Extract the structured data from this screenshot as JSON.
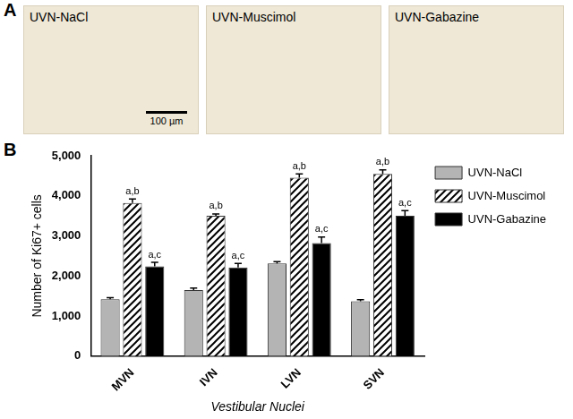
{
  "figure": {
    "panel_labels": [
      "A",
      "B"
    ],
    "micrographs": [
      "UVN-NaCl",
      "UVN-Muscimol",
      "UVN-Gabazine"
    ],
    "scale_bar": "100 µm"
  },
  "chart_data": {
    "type": "bar",
    "x_label": "Vestibular Nuclei",
    "y_label": "Number of Ki67+ cells",
    "categories": [
      "MVN",
      "IVN",
      "LVN",
      "SVN"
    ],
    "series": [
      {
        "name": "UVN-NaCl",
        "color": "#b4b4b4",
        "values": [
          1420,
          1650,
          2310,
          1370
        ],
        "errors": [
          40,
          50,
          50,
          40
        ]
      },
      {
        "name": "UVN-Muscimol",
        "color": "#ffffff",
        "values": [
          3820,
          3500,
          4450,
          4550
        ],
        "errors": [
          100,
          50,
          100,
          100
        ],
        "annotations": [
          "a,b",
          "a,b",
          "a,b",
          "a,b"
        ]
      },
      {
        "name": "UVN-Gabazine",
        "color": "#000000",
        "values": [
          2240,
          2210,
          2820,
          3500
        ],
        "errors": [
          100,
          100,
          150,
          130
        ],
        "annotations": [
          "a,c",
          "a,c",
          "a,c",
          "a,c"
        ]
      }
    ],
    "ylim": [
      0,
      5000
    ],
    "yticks": [
      0,
      1000,
      2000,
      3000,
      4000,
      5000
    ],
    "grid": false,
    "legend": "right"
  }
}
